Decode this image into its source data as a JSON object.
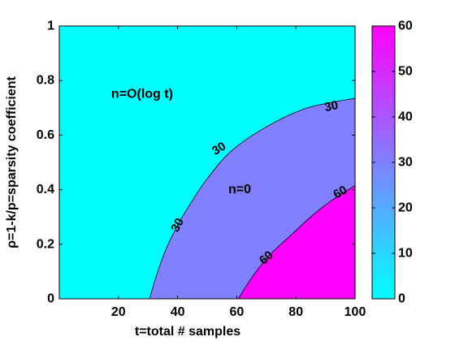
{
  "chart_data": {
    "type": "contour",
    "xlabel": "t=total # samples",
    "ylabel": "ρ=1-k/p=sparsity coefficient",
    "xlim": [
      0,
      100
    ],
    "ylim": [
      0,
      1
    ],
    "xticks": [
      "20",
      "40",
      "60",
      "80",
      "100"
    ],
    "yticks": [
      "0",
      "0.2",
      "0.4",
      "0.6",
      "0.8",
      "1"
    ],
    "regions": [
      {
        "name": "low",
        "label": "n=O(log t)",
        "color": "#00ffff",
        "label_at": [
          28,
          0.75
        ]
      },
      {
        "name": "mid",
        "label": "n=0",
        "color": "#8080ff",
        "label_at": [
          61,
          0.4
        ]
      },
      {
        "name": "high",
        "label": "",
        "color": "#ff00ff"
      }
    ],
    "contours": [
      {
        "level": 30,
        "points": [
          [
            30.5,
            0
          ],
          [
            33,
            0.09
          ],
          [
            36,
            0.18
          ],
          [
            40,
            0.27
          ],
          [
            45,
            0.36
          ],
          [
            50,
            0.44
          ],
          [
            58,
            0.54
          ],
          [
            70,
            0.63
          ],
          [
            84,
            0.7
          ],
          [
            100,
            0.735
          ]
        ],
        "labels": [
          {
            "text": "30",
            "at": [
              40,
              0.27
            ],
            "angle": -62
          },
          {
            "text": "30",
            "at": [
              54,
              0.55
            ],
            "angle": -32
          },
          {
            "text": "30",
            "at": [
              92,
              0.705
            ],
            "angle": -12
          }
        ]
      },
      {
        "level": 60,
        "points": [
          [
            60.5,
            0
          ],
          [
            64,
            0.06
          ],
          [
            68,
            0.12
          ],
          [
            72,
            0.17
          ],
          [
            78,
            0.23
          ],
          [
            85,
            0.3
          ],
          [
            92,
            0.36
          ],
          [
            100,
            0.415
          ]
        ],
        "labels": [
          {
            "text": "60",
            "at": [
              70,
              0.15
            ],
            "angle": -42
          },
          {
            "text": "60",
            "at": [
              95,
              0.39
            ],
            "angle": -30
          }
        ]
      }
    ],
    "colorbar": {
      "range": [
        0,
        60
      ],
      "ticks": [
        "0",
        "10",
        "20",
        "30",
        "40",
        "50",
        "60"
      ],
      "stops": [
        {
          "value": 0,
          "color": "#00ffff"
        },
        {
          "value": 30,
          "color": "#8080ff"
        },
        {
          "value": 60,
          "color": "#ff00ff"
        }
      ]
    }
  }
}
